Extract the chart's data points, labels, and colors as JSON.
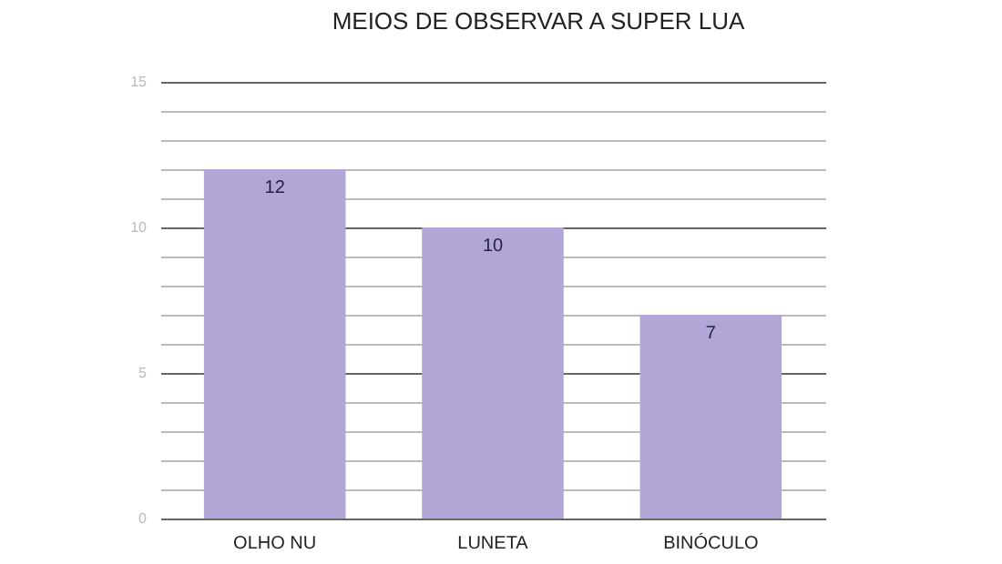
{
  "chart_data": {
    "type": "bar",
    "title": "MEIOS DE OBSERVAR A SUPER LUA",
    "categories": [
      "OLHO NU",
      "LUNETA",
      "BINÓCULO"
    ],
    "series": [
      {
        "color": "#b1a6d5",
        "values": [
          12,
          10,
          7
        ]
      }
    ],
    "ylim": [
      0,
      15
    ],
    "yticks": [
      0,
      {
        "value": 1,
        "label": null
      },
      {
        "value": 2,
        "label": null
      },
      {
        "value": 3,
        "label": null
      },
      {
        "value": 4,
        "label": null
      },
      5,
      {
        "value": 6,
        "label": null
      },
      {
        "value": 7,
        "label": null
      },
      {
        "value": 8,
        "label": null
      },
      {
        "value": 9,
        "label": null
      },
      10,
      {
        "value": 11,
        "label": null
      },
      {
        "value": 12,
        "label": null
      },
      {
        "value": 13,
        "label": null
      },
      {
        "value": 14,
        "label": null
      },
      15
    ],
    "grid": "y",
    "data_labels": true
  }
}
